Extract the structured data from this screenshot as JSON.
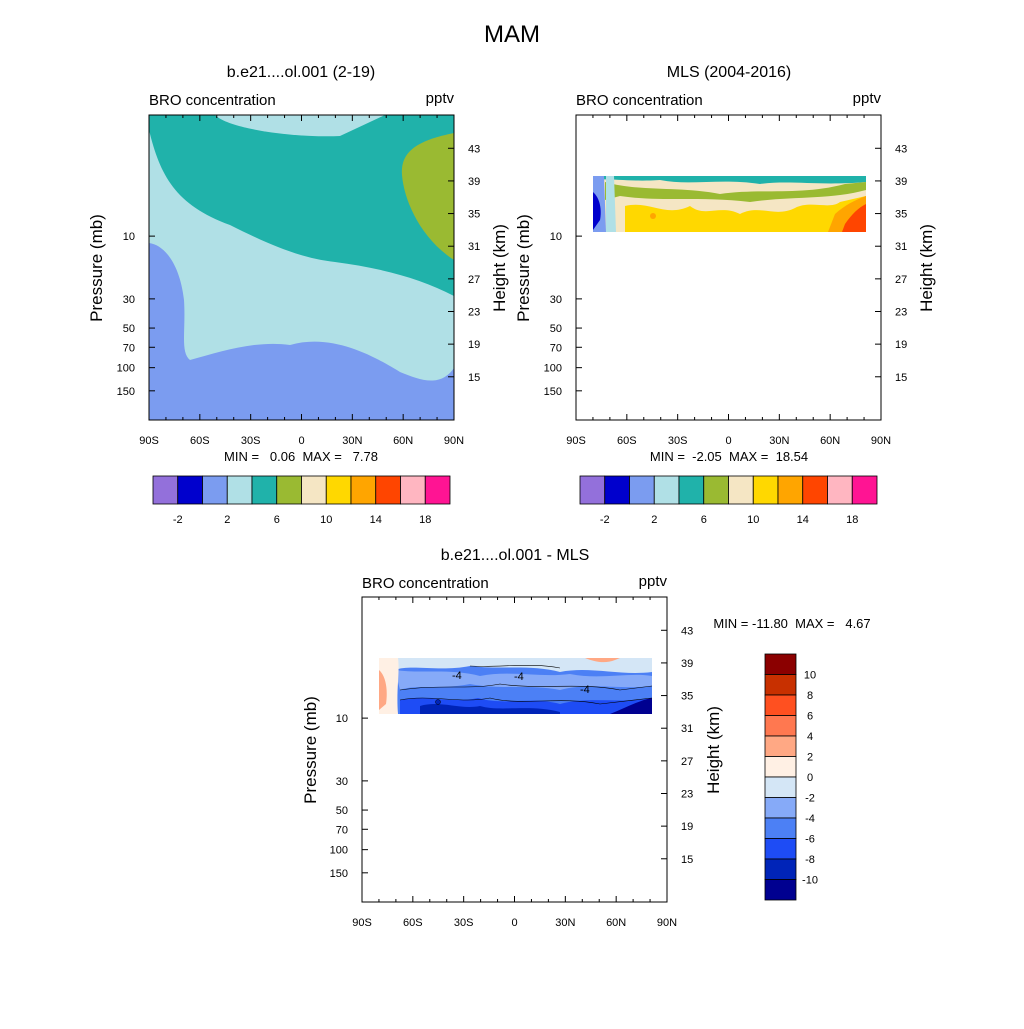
{
  "title": "MAM",
  "colors": {
    "abs_palette": [
      "#9370db",
      "#0000cd",
      "#7b9cf0",
      "#b0e0e6",
      "#20b2aa",
      "#9aba32",
      "#f5e6c4",
      "#ffd800",
      "#ffa500",
      "#ff4500",
      "#ffb6c1",
      "#ff1493"
    ],
    "diff_palette": [
      "#000090",
      "#0024b8",
      "#1e4cf5",
      "#4c80f5",
      "#86aaf8",
      "#d4e6f6",
      "#fff0e4",
      "#ffa884",
      "#ff7850",
      "#ff5020",
      "#c83000",
      "#8b0000"
    ],
    "frame": "#000000"
  },
  "panels": {
    "model": {
      "title": "b.e21....ol.001 (2-19)",
      "left_label": "BRO concentration",
      "right_label": "pptv",
      "ylabel": "Pressure (mb)",
      "ylabel_right": "Height (km)",
      "minmax": "MIN =   0.06  MAX =   7.78"
    },
    "mls": {
      "title": "MLS (2004-2016)",
      "left_label": "BRO concentration",
      "right_label": "pptv",
      "ylabel": "Pressure (mb)",
      "ylabel_right": "Height (km)",
      "minmax": "MIN =  -2.05  MAX =  18.54"
    },
    "diff": {
      "title": "b.e21....ol.001 - MLS",
      "left_label": "BRO concentration",
      "right_label": "pptv",
      "ylabel": "Pressure (mb)",
      "ylabel_right": "Height (km)",
      "minmax": "MIN = -11.80  MAX =   4.67"
    }
  },
  "chart_data": [
    {
      "type": "heatmap",
      "name": "model",
      "title": "b.e21....ol.001 (2-19)",
      "x_ticks": [
        "90S",
        "60S",
        "30S",
        "0",
        "30N",
        "60N",
        "90N"
      ],
      "y_ticks": [
        "10",
        "30",
        "50",
        "70",
        "100",
        "150"
      ],
      "y_right_ticks": [
        "43",
        "39",
        "35",
        "31",
        "27",
        "23",
        "19",
        "15"
      ],
      "min": 0.06,
      "max": 7.78,
      "colorbar_labels": [
        "-2",
        "2",
        "6",
        "10",
        "14",
        "18"
      ]
    },
    {
      "type": "heatmap",
      "name": "mls",
      "title": "MLS (2004-2016)",
      "x_ticks": [
        "90S",
        "60S",
        "30S",
        "0",
        "30N",
        "60N",
        "90N"
      ],
      "y_ticks": [
        "10",
        "30",
        "50",
        "70",
        "100",
        "150"
      ],
      "y_right_ticks": [
        "43",
        "39",
        "35",
        "31",
        "27",
        "23",
        "19",
        "15"
      ],
      "min": -2.05,
      "max": 18.54,
      "colorbar_labels": [
        "-2",
        "2",
        "6",
        "10",
        "14",
        "18"
      ]
    },
    {
      "type": "heatmap",
      "name": "diff",
      "title": "b.e21....ol.001 - MLS",
      "x_ticks": [
        "90S",
        "60S",
        "30S",
        "0",
        "30N",
        "60N",
        "90N"
      ],
      "y_ticks": [
        "10",
        "30",
        "50",
        "70",
        "100",
        "150"
      ],
      "y_right_ticks": [
        "43",
        "39",
        "35",
        "31",
        "27",
        "23",
        "19",
        "15"
      ],
      "min": -11.8,
      "max": 4.67,
      "colorbar_labels": [
        "10",
        "8",
        "6",
        "4",
        "2",
        "0",
        "-2",
        "-4",
        "-6",
        "-8",
        "-10"
      ],
      "contour_labels": [
        "-4",
        "-4",
        "-4"
      ]
    }
  ]
}
